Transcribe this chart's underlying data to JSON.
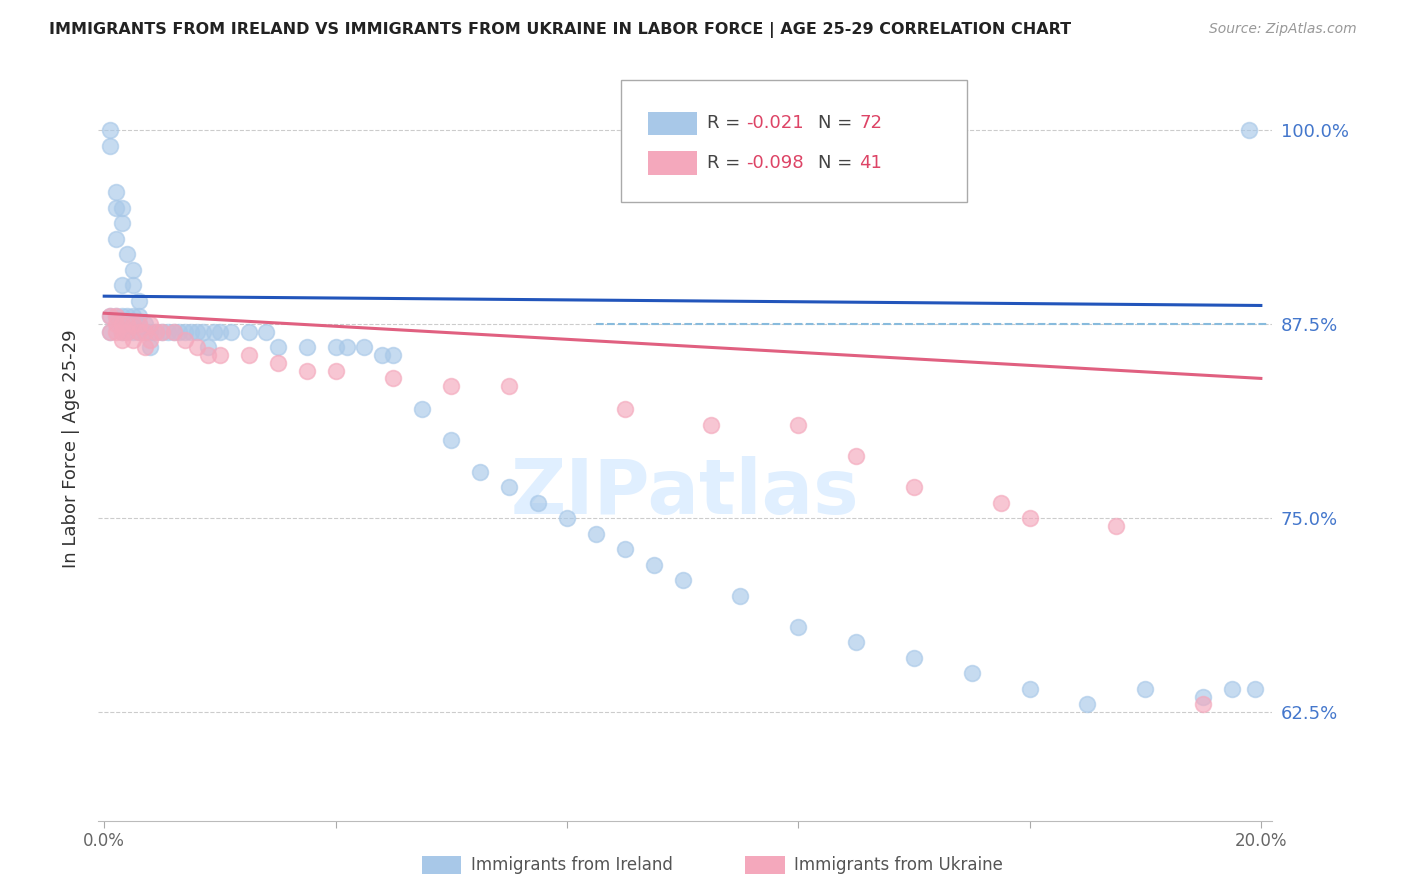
{
  "title": "IMMIGRANTS FROM IRELAND VS IMMIGRANTS FROM UKRAINE IN LABOR FORCE | AGE 25-29 CORRELATION CHART",
  "source": "Source: ZipAtlas.com",
  "ylabel": "In Labor Force | Age 25-29",
  "xmin": 0.0,
  "xmax": 0.2,
  "ymin": 0.555,
  "ymax": 1.035,
  "yticks": [
    0.625,
    0.75,
    0.875,
    1.0
  ],
  "ytick_labels": [
    "62.5%",
    "75.0%",
    "87.5%",
    "100.0%"
  ],
  "ireland_R": -0.021,
  "ireland_N": 72,
  "ukraine_R": -0.098,
  "ukraine_N": 41,
  "ireland_color": "#a8c8e8",
  "ukraine_color": "#f4a8bc",
  "ireland_line_color": "#2255bb",
  "ukraine_line_color": "#e06080",
  "dashed_line_color": "#88bbdd",
  "ireland_line_y0": 0.893,
  "ireland_line_y1": 0.887,
  "ukraine_line_y0": 0.882,
  "ukraine_line_y1": 0.84,
  "ireland_x": [
    0.001,
    0.001,
    0.001,
    0.001,
    0.002,
    0.002,
    0.002,
    0.002,
    0.003,
    0.003,
    0.003,
    0.003,
    0.003,
    0.004,
    0.004,
    0.004,
    0.005,
    0.005,
    0.005,
    0.005,
    0.006,
    0.006,
    0.006,
    0.006,
    0.007,
    0.007,
    0.008,
    0.008,
    0.009,
    0.01,
    0.011,
    0.012,
    0.013,
    0.014,
    0.015,
    0.016,
    0.017,
    0.018,
    0.019,
    0.02,
    0.022,
    0.025,
    0.028,
    0.03,
    0.035,
    0.04,
    0.042,
    0.045,
    0.048,
    0.05,
    0.055,
    0.06,
    0.065,
    0.07,
    0.075,
    0.08,
    0.085,
    0.09,
    0.095,
    0.1,
    0.11,
    0.12,
    0.13,
    0.14,
    0.15,
    0.16,
    0.17,
    0.18,
    0.19,
    0.195,
    0.198,
    0.199
  ],
  "ireland_y": [
    0.88,
    0.87,
    0.99,
    1.0,
    0.88,
    0.96,
    0.95,
    0.93,
    0.88,
    0.87,
    0.9,
    0.95,
    0.94,
    0.87,
    0.88,
    0.92,
    0.87,
    0.88,
    0.91,
    0.9,
    0.875,
    0.87,
    0.88,
    0.89,
    0.87,
    0.875,
    0.87,
    0.86,
    0.87,
    0.87,
    0.87,
    0.87,
    0.87,
    0.87,
    0.87,
    0.87,
    0.87,
    0.86,
    0.87,
    0.87,
    0.87,
    0.87,
    0.87,
    0.86,
    0.86,
    0.86,
    0.86,
    0.86,
    0.855,
    0.855,
    0.82,
    0.8,
    0.78,
    0.77,
    0.76,
    0.75,
    0.74,
    0.73,
    0.72,
    0.71,
    0.7,
    0.68,
    0.67,
    0.66,
    0.65,
    0.64,
    0.63,
    0.64,
    0.635,
    0.64,
    1.0,
    0.64
  ],
  "ukraine_x": [
    0.001,
    0.001,
    0.002,
    0.002,
    0.002,
    0.003,
    0.003,
    0.003,
    0.004,
    0.004,
    0.005,
    0.005,
    0.006,
    0.006,
    0.007,
    0.007,
    0.008,
    0.008,
    0.009,
    0.01,
    0.012,
    0.014,
    0.016,
    0.018,
    0.02,
    0.025,
    0.03,
    0.035,
    0.04,
    0.05,
    0.06,
    0.07,
    0.09,
    0.105,
    0.12,
    0.13,
    0.14,
    0.155,
    0.16,
    0.175,
    0.19
  ],
  "ukraine_y": [
    0.88,
    0.87,
    0.88,
    0.875,
    0.87,
    0.875,
    0.87,
    0.865,
    0.875,
    0.87,
    0.875,
    0.865,
    0.875,
    0.87,
    0.87,
    0.86,
    0.875,
    0.865,
    0.87,
    0.87,
    0.87,
    0.865,
    0.86,
    0.855,
    0.855,
    0.855,
    0.85,
    0.845,
    0.845,
    0.84,
    0.835,
    0.835,
    0.82,
    0.81,
    0.81,
    0.79,
    0.77,
    0.76,
    0.75,
    0.745,
    0.63
  ]
}
